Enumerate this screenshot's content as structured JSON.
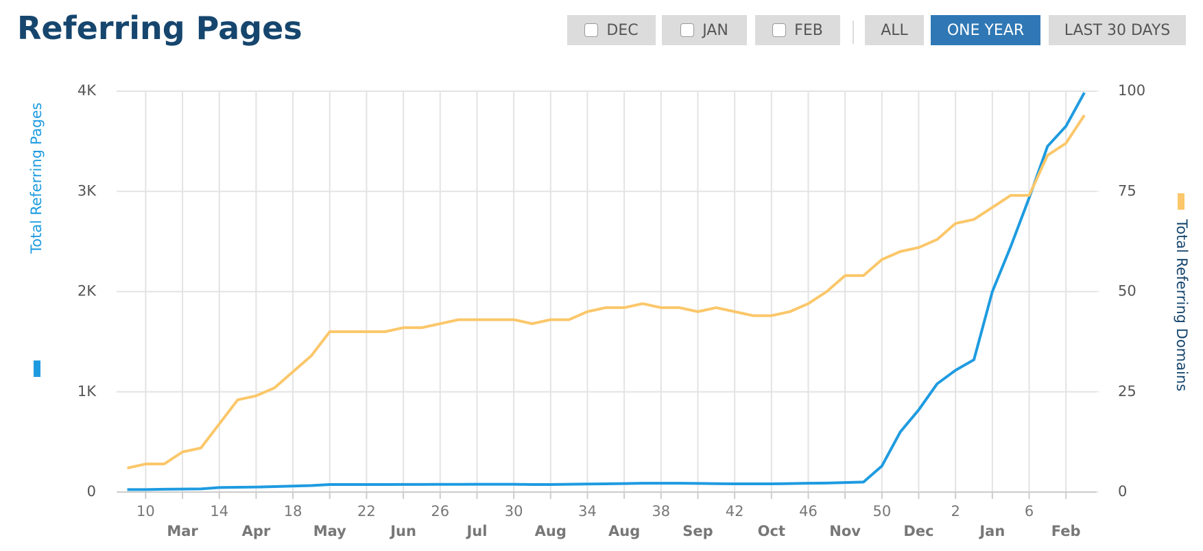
{
  "chart_data": {
    "type": "line",
    "title": "Referring Pages",
    "controls": [
      {
        "label": "DEC",
        "checkbox": true,
        "active": false
      },
      {
        "label": "JAN",
        "checkbox": true,
        "active": false
      },
      {
        "label": "FEB",
        "checkbox": true,
        "active": false
      },
      {
        "label": "ALL",
        "checkbox": false,
        "active": false
      },
      {
        "label": "ONE YEAR",
        "checkbox": false,
        "active": true
      },
      {
        "label": "LAST 30 DAYS",
        "checkbox": false,
        "active": false
      }
    ],
    "x": [
      9,
      10,
      11,
      12,
      13,
      14,
      15,
      16,
      17,
      18,
      19,
      20,
      21,
      22,
      23,
      24,
      25,
      26,
      27,
      28,
      29,
      30,
      31,
      32,
      33,
      34,
      35,
      36,
      37,
      38,
      39,
      40,
      41,
      42,
      43,
      44,
      45,
      46,
      47,
      48,
      49,
      50,
      51,
      52,
      53,
      54,
      55,
      56,
      57,
      58,
      59,
      60,
      61
    ],
    "xlim": [
      8.42,
      61.67
    ],
    "xticks": [
      10,
      14,
      18,
      22,
      26,
      30,
      34,
      38,
      42,
      46,
      50,
      {
        "value": 54,
        "label": "2"
      },
      {
        "value": 58,
        "label": "6"
      }
    ],
    "month_ticks": [
      {
        "value": 12,
        "label": "Mar"
      },
      {
        "value": 16,
        "label": "Apr"
      },
      {
        "value": 20,
        "label": "May"
      },
      {
        "value": 24,
        "label": "Jun"
      },
      {
        "value": 28,
        "label": "Jul"
      },
      {
        "value": 32,
        "label": "Aug"
      },
      {
        "value": 36,
        "label": "Aug"
      },
      {
        "value": 40,
        "label": "Sep"
      },
      {
        "value": 44,
        "label": "Oct"
      },
      {
        "value": 48,
        "label": "Nov"
      },
      {
        "value": 52,
        "label": "Dec"
      },
      {
        "value": 56,
        "label": "Jan"
      },
      {
        "value": 60,
        "label": "Feb"
      }
    ],
    "ylim": [
      0,
      4000
    ],
    "yticks": [
      0,
      {
        "value": 1000,
        "label": "1K"
      },
      {
        "value": 2000,
        "label": "2K"
      },
      {
        "value": 3000,
        "label": "3K"
      },
      {
        "value": 4000,
        "label": "4K"
      }
    ],
    "y2lim": [
      0,
      100
    ],
    "y2ticks": [
      0,
      25,
      50,
      75,
      100
    ],
    "grid": true,
    "series": [
      {
        "name": "Total Referring Pages",
        "color": "#1e9be0",
        "values": [
          25,
          25,
          28,
          30,
          32,
          45,
          48,
          50,
          55,
          60,
          65,
          75,
          75,
          75,
          75,
          76,
          76,
          77,
          77,
          78,
          78,
          78,
          75,
          75,
          78,
          80,
          82,
          85,
          88,
          88,
          88,
          86,
          84,
          82,
          82,
          82,
          85,
          88,
          90,
          95,
          100,
          260,
          600,
          820,
          1080,
          1215,
          1320,
          2000,
          2450,
          2935,
          3450,
          3650,
          3985
        ]
      },
      {
        "name": "Total Referring Domains",
        "color": "#fbc76a",
        "axis": "y2",
        "values": [
          6,
          7,
          7,
          10,
          11,
          17,
          23,
          24,
          26,
          30,
          34,
          40,
          40,
          40,
          40,
          41,
          41,
          42,
          43,
          43,
          43,
          43,
          42,
          43,
          43,
          45,
          46,
          46,
          47,
          46,
          46,
          45,
          46,
          45,
          44,
          44,
          45,
          47,
          50,
          54,
          54,
          58,
          60,
          61,
          63,
          67,
          68,
          71,
          74,
          74,
          84,
          87,
          94
        ]
      }
    ]
  }
}
